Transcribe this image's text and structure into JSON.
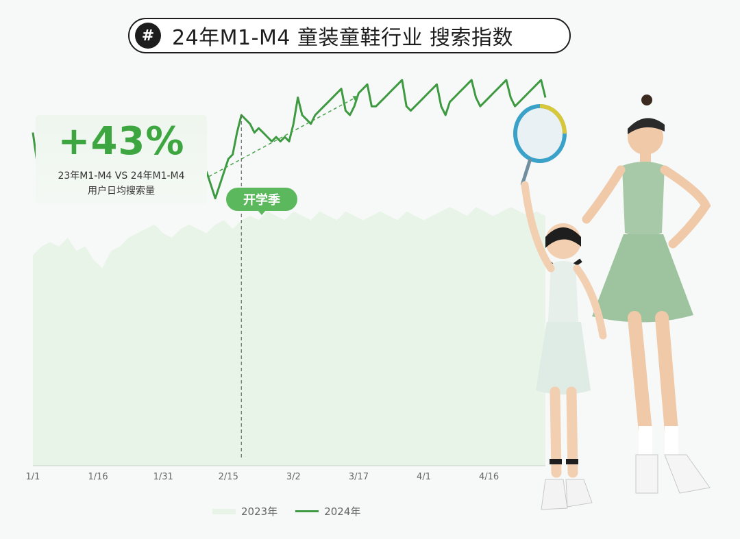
{
  "title": {
    "hash_symbol": "#",
    "text": "24年M1-M4  童装童鞋行业  搜索指数"
  },
  "stat": {
    "value": "+43%",
    "line1": "23年M1-M4 VS 24年M1-M4",
    "line2": "用户日均搜索量"
  },
  "callout": {
    "label": "开学季"
  },
  "legend": {
    "series_2023": "2023年",
    "series_2024": "2024年"
  },
  "colors": {
    "line_2024": "#3e9a40",
    "area_2023": "#e7f4e7",
    "accent": "#3ea640",
    "callout_bg": "#5bb85d"
  },
  "chart_data": {
    "type": "line",
    "x_tick_labels": [
      "1/1",
      "1/16",
      "1/31",
      "2/15",
      "3/2",
      "3/17",
      "4/1",
      "4/16"
    ],
    "x_range_days": [
      0,
      118
    ],
    "ylim": [
      0,
      100
    ],
    "y_tick_labels_shown": false,
    "grid": false,
    "legend_position": "bottom",
    "marker_day": 48,
    "marker_label": "开学季",
    "series": [
      {
        "name": "2023年",
        "style": "area",
        "x": [
          0,
          2,
          4,
          6,
          8,
          10,
          12,
          14,
          16,
          18,
          20,
          22,
          24,
          26,
          28,
          30,
          32,
          34,
          36,
          38,
          40,
          42,
          44,
          46,
          48,
          50,
          52,
          54,
          56,
          58,
          60,
          62,
          64,
          66,
          68,
          70,
          72,
          74,
          76,
          78,
          80,
          82,
          84,
          86,
          88,
          90,
          92,
          94,
          96,
          98,
          100,
          102,
          104,
          106,
          108,
          110,
          112,
          114,
          116,
          118
        ],
        "y": [
          48,
          50,
          51,
          50,
          52,
          49,
          50,
          47,
          45,
          49,
          50,
          52,
          53,
          54,
          55,
          53,
          52,
          54,
          55,
          54,
          53,
          55,
          56,
          54,
          56,
          57,
          56,
          58,
          57,
          56,
          58,
          57,
          56,
          58,
          57,
          56,
          58,
          57,
          56,
          57,
          58,
          57,
          56,
          58,
          57,
          56,
          57,
          58,
          59,
          58,
          57,
          59,
          58,
          57,
          58,
          59,
          58,
          57,
          58,
          57
        ]
      },
      {
        "name": "2024年",
        "style": "line",
        "x": [
          0,
          1,
          2,
          3,
          4,
          5,
          6,
          7,
          8,
          9,
          10,
          11,
          12,
          13,
          14,
          15,
          16,
          17,
          18,
          19,
          20,
          21,
          22,
          23,
          24,
          25,
          26,
          27,
          28,
          29,
          30,
          31,
          32,
          33,
          34,
          35,
          36,
          37,
          38,
          39,
          40,
          41,
          42,
          43,
          44,
          45,
          46,
          47,
          48,
          49,
          50,
          51,
          52,
          53,
          54,
          55,
          56,
          57,
          58,
          59,
          60,
          61,
          62,
          63,
          64,
          65,
          66,
          67,
          68,
          69,
          70,
          71,
          72,
          73,
          74,
          75,
          76,
          77,
          78,
          79,
          80,
          81,
          82,
          83,
          84,
          85,
          86,
          87,
          88,
          89,
          90,
          91,
          92,
          93,
          94,
          95,
          96,
          97,
          98,
          99,
          100,
          101,
          102,
          103,
          104,
          105,
          106,
          107,
          108,
          109,
          110,
          111,
          112,
          113,
          114,
          115,
          116,
          117,
          118
        ],
        "y": [
          76,
          69,
          68,
          68,
          69,
          71,
          74,
          71,
          70,
          70,
          70,
          71,
          72,
          73,
          76,
          77,
          73,
          72,
          73,
          73,
          72,
          75,
          76,
          73,
          70,
          70,
          71,
          71,
          72,
          73,
          74,
          73,
          72,
          72,
          71,
          69,
          70,
          67,
          64,
          62,
          67,
          64,
          61,
          64,
          67,
          70,
          71,
          76,
          80,
          79,
          78,
          76,
          77,
          76,
          75,
          74,
          75,
          74,
          75,
          74,
          78,
          84,
          80,
          79,
          78,
          80,
          81,
          82,
          83,
          84,
          85,
          86,
          81,
          80,
          82,
          85,
          86,
          87,
          82,
          82,
          83,
          84,
          85,
          86,
          87,
          88,
          82,
          81,
          82,
          83,
          84,
          85,
          86,
          87,
          82,
          80,
          83,
          84,
          85,
          86,
          87,
          88,
          84,
          82,
          83,
          84,
          85,
          86,
          87,
          88,
          84,
          82,
          83,
          84,
          85,
          86,
          87,
          88,
          84
        ]
      }
    ]
  }
}
